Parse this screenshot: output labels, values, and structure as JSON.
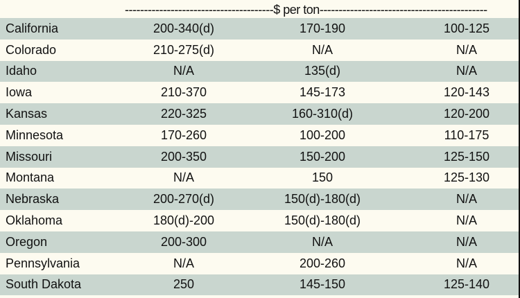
{
  "header": {
    "unit_line": "---------------------------------------$ per ton--------------------------------------------"
  },
  "rows": [
    {
      "state": "California",
      "col1": "200-340(d)",
      "col2": "170-190",
      "col3": "100-125"
    },
    {
      "state": "Colorado",
      "col1": "210-275(d)",
      "col2": "N/A",
      "col3": "N/A"
    },
    {
      "state": "Idaho",
      "col1": "N/A",
      "col2": "135(d)",
      "col3": "N/A"
    },
    {
      "state": "Iowa",
      "col1": "210-370",
      "col2": "145-173",
      "col3": "120-143"
    },
    {
      "state": "Kansas",
      "col1": "220-325",
      "col2": "160-310(d)",
      "col3": "120-200"
    },
    {
      "state": "Minnesota",
      "col1": "170-260",
      "col2": "100-200",
      "col3": "110-175"
    },
    {
      "state": "Missouri",
      "col1": "200-350",
      "col2": "150-200",
      "col3": "125-150"
    },
    {
      "state": "Montana",
      "col1": "N/A",
      "col2": "150",
      "col3": "125-130"
    },
    {
      "state": "Nebraska",
      "col1": "200-270(d)",
      "col2": "150(d)-180(d)",
      "col3": "N/A"
    },
    {
      "state": "Oklahoma",
      "col1": "180(d)-200",
      "col2": "150(d)-180(d)",
      "col3": "N/A"
    },
    {
      "state": "Oregon",
      "col1": "200-300",
      "col2": "N/A",
      "col3": "N/A"
    },
    {
      "state": "Pennsylvania",
      "col1": "N/A",
      "col2": "200-260",
      "col3": "N/A"
    },
    {
      "state": "South Dakota",
      "col1": "250",
      "col2": "145-150",
      "col3": "125-140"
    }
  ]
}
